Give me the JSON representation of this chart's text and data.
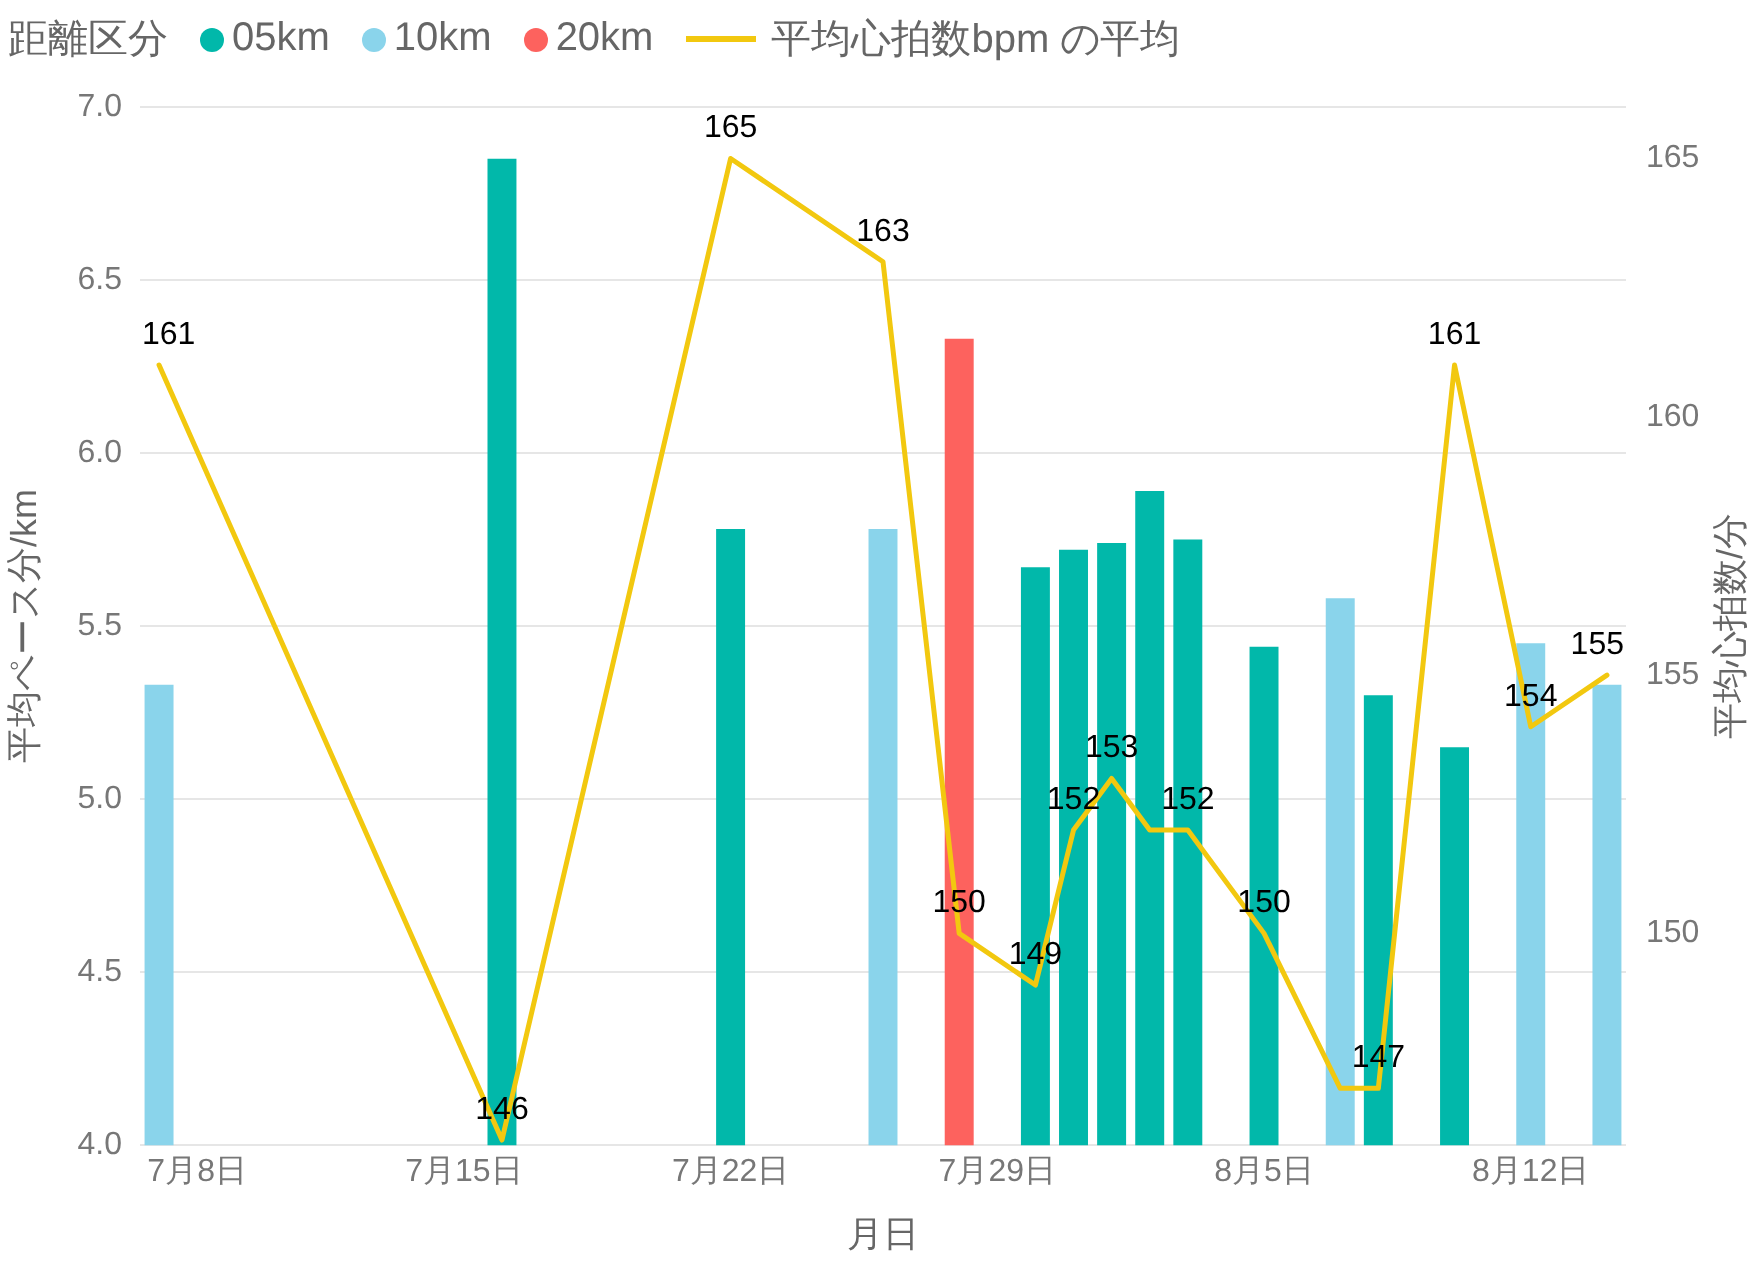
{
  "chart_data": {
    "type": "bar",
    "legend_title": "距離区分",
    "xlabel": "月日",
    "ylabel": "平均ペース分/km",
    "y2label": "平均心拍数/分",
    "x": [
      "--07-07",
      "--07-16",
      "--07-22",
      "--07-26",
      "--07-28",
      "--07-30",
      "--07-31",
      "--08-01",
      "--08-02",
      "--08-03",
      "--08-05",
      "--08-07",
      "--08-08",
      "--08-10",
      "--08-12",
      "--08-14"
    ],
    "series": [
      {
        "name": "05km",
        "color": "#01b8aa",
        "values": [
          null,
          6.85,
          5.78,
          null,
          null,
          5.67,
          5.72,
          5.74,
          5.89,
          5.75,
          5.44,
          null,
          5.3,
          5.15,
          null,
          null
        ]
      },
      {
        "name": "10km",
        "color": "#8ad4eb",
        "values": [
          5.33,
          null,
          null,
          5.78,
          null,
          null,
          null,
          null,
          null,
          null,
          null,
          5.58,
          null,
          null,
          5.45,
          5.33
        ]
      },
      {
        "name": "20km",
        "color": "#fd625e",
        "values": [
          null,
          null,
          null,
          null,
          6.33,
          null,
          null,
          null,
          null,
          null,
          null,
          null,
          null,
          null,
          null,
          null
        ]
      },
      {
        "name": "平均心拍数bpm の平均",
        "type": "line",
        "axis": "y2",
        "color": "#f2c80f",
        "values": [
          161,
          146,
          165,
          163,
          150,
          149,
          152,
          153,
          152,
          152,
          150,
          147,
          147,
          161,
          154,
          155
        ],
        "value_labels": [
          "161",
          "146",
          "165",
          "163",
          "150",
          "149",
          "152",
          "153",
          null,
          "152",
          "150",
          null,
          "147",
          "161",
          "154",
          "155"
        ]
      }
    ],
    "xlim": [
      "--07-06T12:00",
      "--08-14T12:00"
    ],
    "xticks": [
      {
        "value": "--07-08",
        "label": "7月8日"
      },
      {
        "value": "--07-15",
        "label": "7月15日"
      },
      {
        "value": "--07-22",
        "label": "7月22日"
      },
      {
        "value": "--07-29",
        "label": "7月29日"
      },
      {
        "value": "--08-05",
        "label": "8月5日"
      },
      {
        "value": "--08-12",
        "label": "8月12日"
      }
    ],
    "ylim": [
      4,
      7
    ],
    "yticks": [
      {
        "value": 4,
        "label": "4.0"
      },
      4.5,
      {
        "value": 5,
        "label": "5.0"
      },
      5.5,
      {
        "value": 6,
        "label": "6.0"
      },
      6.5,
      {
        "value": 7,
        "label": "7.0"
      }
    ],
    "y2lim": [
      145.9,
      166
    ],
    "y2ticks": [
      150,
      155,
      160,
      165
    ],
    "grid": "y",
    "legend": "top left",
    "marker": "none"
  }
}
